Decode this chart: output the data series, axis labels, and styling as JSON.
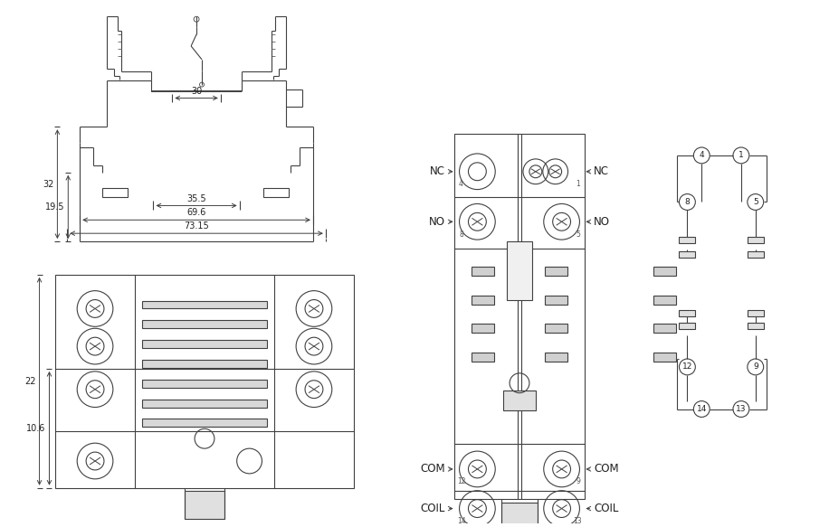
{
  "bg_color": "#ffffff",
  "line_color": "#404040",
  "text_color": "#202020",
  "lw": 0.8,
  "lw_thick": 1.4,
  "dims": {
    "d30": "30",
    "d35_5": "35.5",
    "d69_6": "69.6",
    "d73_15": "73.15",
    "d32": "32",
    "d19_5": "19.5",
    "d22": "22",
    "d10_6": "10.6"
  },
  "front_labels_left": [
    "NC",
    "NO",
    "COM",
    "COIL"
  ],
  "front_labels_right": [
    "NC",
    "NO",
    "COM",
    "COIL"
  ],
  "schem_pins": [
    [
      "4",
      "1"
    ],
    [
      "8",
      "5"
    ],
    [
      "12",
      "9"
    ],
    [
      "14",
      "13"
    ]
  ]
}
